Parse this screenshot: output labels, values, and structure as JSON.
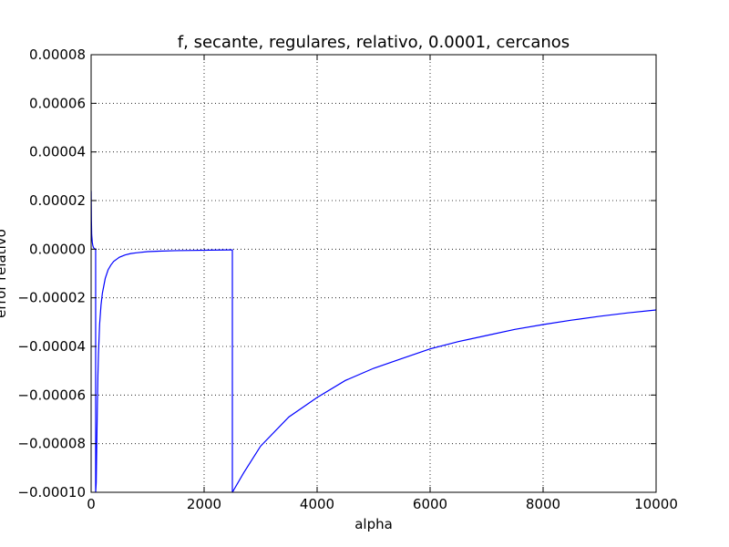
{
  "chart_data": {
    "type": "line",
    "title": "f, secante, regulares, relativo, 0.0001, cercanos",
    "xlabel": "alpha",
    "ylabel": "error relativo",
    "xlim": [
      0,
      10000
    ],
    "ylim": [
      -0.0001,
      8e-05
    ],
    "grid": true,
    "series_color": "#0000ff",
    "x_ticks": [
      {
        "value": 0,
        "label": "0"
      },
      {
        "value": 2000,
        "label": "2000"
      },
      {
        "value": 4000,
        "label": "4000"
      },
      {
        "value": 6000,
        "label": "6000"
      },
      {
        "value": 8000,
        "label": "8000"
      },
      {
        "value": 10000,
        "label": "10000"
      }
    ],
    "y_ticks": [
      {
        "value": 8e-05,
        "label": "0.00008"
      },
      {
        "value": 6e-05,
        "label": "0.00006"
      },
      {
        "value": 4e-05,
        "label": "0.00004"
      },
      {
        "value": 2e-05,
        "label": "0.00002"
      },
      {
        "value": 0.0,
        "label": "0.00000"
      },
      {
        "value": -2e-05,
        "label": "−0.00002"
      },
      {
        "value": -4e-05,
        "label": "−0.00004"
      },
      {
        "value": -6e-05,
        "label": "−0.00006"
      },
      {
        "value": -8e-05,
        "label": "−0.00008"
      },
      {
        "value": -0.0001,
        "label": "−0.00010"
      }
    ],
    "series": [
      {
        "x": [
          1,
          5,
          10,
          20,
          30,
          40,
          50,
          60,
          70,
          80,
          80,
          90,
          100,
          110,
          120,
          130,
          150,
          175,
          200,
          250,
          300,
          350,
          400,
          500,
          600,
          700,
          800,
          1000,
          1200,
          1500,
          1800,
          2100,
          2450,
          2500,
          2500,
          2700,
          3000,
          3500,
          4000,
          4500,
          5000,
          5500,
          6000,
          6500,
          7000,
          7500,
          8000,
          8500,
          9000,
          9500,
          10000
        ],
        "y": [
          2.4e-05,
          1.2e-05,
          6e-06,
          3e-06,
          1.5e-06,
          8e-07,
          4e-07,
          2e-07,
          1e-07,
          0.0,
          -0.0001,
          -9.6e-05,
          -8e-05,
          -6.5e-05,
          -5.2e-05,
          -4.3e-05,
          -3.1e-05,
          -2.3e-05,
          -1.8e-05,
          -1.2e-05,
          -8.5e-06,
          -6.5e-06,
          -5e-06,
          -3.3e-06,
          -2.4e-06,
          -1.8e-06,
          -1.5e-06,
          -1e-06,
          -8e-07,
          -6e-07,
          -5e-07,
          -4e-07,
          -3e-07,
          -3e-07,
          -0.0001,
          -9.2e-05,
          -8.1e-05,
          -6.9e-05,
          -6.1e-05,
          -5.4e-05,
          -4.9e-05,
          -4.5e-05,
          -4.1e-05,
          -3.8e-05,
          -3.55e-05,
          -3.3e-05,
          -3.1e-05,
          -2.92e-05,
          -2.76e-05,
          -2.62e-05,
          -2.5e-05
        ]
      }
    ]
  }
}
